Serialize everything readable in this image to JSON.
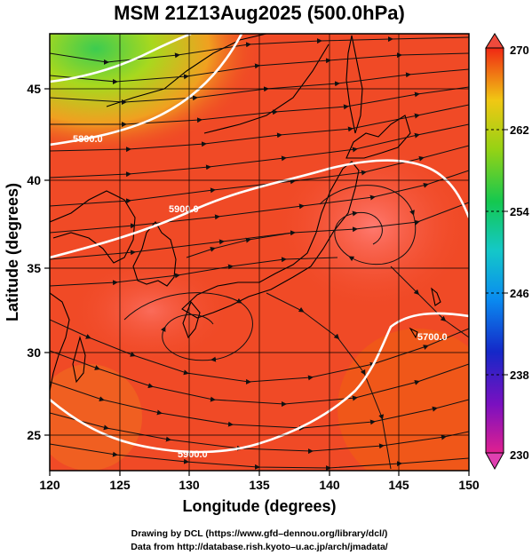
{
  "title": "MSM 21Z13Aug2025 (500.0hPa)",
  "xlabel": "Longitude (degrees)",
  "ylabel": "Latitude  (degrees)",
  "x_ticks": [
    "120",
    "125",
    "130",
    "135",
    "140",
    "145",
    "150"
  ],
  "y_ticks": [
    "25",
    "30",
    "35",
    "40",
    "45"
  ],
  "map": {
    "lon_range": [
      120,
      150
    ],
    "lat_range": [
      22.4,
      47.6
    ],
    "field": "temperature (shaded)",
    "wind": "streamlines",
    "height_contours": [
      {
        "label": "5900.0"
      },
      {
        "label": "5800.0"
      },
      {
        "label": "5700.0"
      },
      {
        "label": "5900.0"
      }
    ]
  },
  "colorbar": {
    "min": 230,
    "max": 270,
    "tick_labels": [
      "270",
      "262",
      "254",
      "246",
      "238",
      "230"
    ]
  },
  "credits": [
    "Drawing by DCL (https://www.gfd–dennou.org/library/dcl/)",
    "Data from http://database.rish.kyoto–u.ac.jp/arch/jmadata/"
  ]
}
